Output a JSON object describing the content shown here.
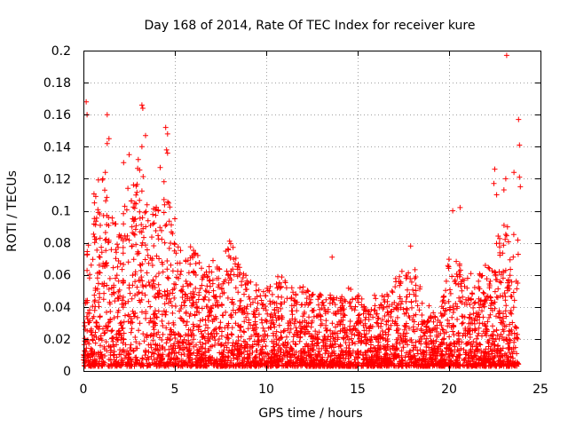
{
  "chart_data": {
    "type": "scatter",
    "title": "Day 168 of 2014, Rate Of TEC Index for receiver kure",
    "xlabel": "GPS time / hours",
    "ylabel": "ROTI / TECUs",
    "xlim": [
      0,
      25
    ],
    "ylim": [
      0,
      0.2
    ],
    "x_ticks": [
      0,
      5,
      10,
      15,
      20,
      25
    ],
    "x_tick_labels": [
      "0",
      "5",
      "10",
      "15",
      "20",
      "25"
    ],
    "y_ticks": [
      0,
      0.02,
      0.04,
      0.06,
      0.08,
      0.1,
      0.12,
      0.14,
      0.16,
      0.18,
      0.2
    ],
    "y_tick_labels": [
      "0",
      "0.02",
      "0.04",
      "0.06",
      "0.08",
      "0.1",
      "0.12",
      "0.14",
      "0.16",
      "0.18",
      "0.2"
    ],
    "grid": true,
    "marker": "plus",
    "color": "#ff0000",
    "envelope": {
      "x": [
        0,
        0.2,
        0.5,
        1,
        1.5,
        2,
        2.5,
        3,
        3.5,
        4,
        4.5,
        5,
        5.5,
        6,
        6.5,
        7,
        7.5,
        8,
        8.5,
        9,
        9.5,
        10,
        10.5,
        11,
        11.5,
        12,
        12.5,
        13,
        13.5,
        14,
        14.5,
        15,
        15.5,
        16,
        16.5,
        17,
        17.5,
        18,
        18.5,
        19,
        19.5,
        20,
        20.5,
        21,
        21.5,
        22,
        22.5,
        23,
        23.5,
        23.8
      ],
      "y": [
        0.02,
        0.08,
        0.11,
        0.12,
        0.1,
        0.09,
        0.12,
        0.13,
        0.11,
        0.1,
        0.12,
        0.08,
        0.07,
        0.08,
        0.06,
        0.065,
        0.07,
        0.08,
        0.065,
        0.06,
        0.05,
        0.05,
        0.055,
        0.06,
        0.05,
        0.05,
        0.045,
        0.045,
        0.045,
        0.045,
        0.05,
        0.045,
        0.04,
        0.045,
        0.045,
        0.055,
        0.06,
        0.065,
        0.05,
        0.035,
        0.03,
        0.07,
        0.065,
        0.06,
        0.055,
        0.065,
        0.08,
        0.09,
        0.09,
        0.08
      ]
    },
    "outliers": [
      {
        "x": 0.15,
        "y": 0.168
      },
      {
        "x": 0.2,
        "y": 0.16
      },
      {
        "x": 1.3,
        "y": 0.16
      },
      {
        "x": 1.4,
        "y": 0.145
      },
      {
        "x": 1.3,
        "y": 0.142
      },
      {
        "x": 3.2,
        "y": 0.166
      },
      {
        "x": 3.25,
        "y": 0.164
      },
      {
        "x": 3.4,
        "y": 0.147
      },
      {
        "x": 3.2,
        "y": 0.14
      },
      {
        "x": 4.5,
        "y": 0.152
      },
      {
        "x": 4.6,
        "y": 0.148
      },
      {
        "x": 4.55,
        "y": 0.138
      },
      {
        "x": 4.6,
        "y": 0.136
      },
      {
        "x": 2.5,
        "y": 0.135
      },
      {
        "x": 2.2,
        "y": 0.13
      },
      {
        "x": 3.0,
        "y": 0.132
      },
      {
        "x": 1.2,
        "y": 0.124
      },
      {
        "x": 4.2,
        "y": 0.127
      },
      {
        "x": 22.5,
        "y": 0.126
      },
      {
        "x": 22.45,
        "y": 0.117
      },
      {
        "x": 23.0,
        "y": 0.113
      },
      {
        "x": 23.1,
        "y": 0.12
      },
      {
        "x": 23.55,
        "y": 0.124
      },
      {
        "x": 23.8,
        "y": 0.157
      },
      {
        "x": 23.85,
        "y": 0.141
      },
      {
        "x": 23.85,
        "y": 0.121
      },
      {
        "x": 23.9,
        "y": 0.115
      },
      {
        "x": 23.15,
        "y": 0.197
      },
      {
        "x": 22.6,
        "y": 0.11
      },
      {
        "x": 20.2,
        "y": 0.1
      },
      {
        "x": 20.6,
        "y": 0.102
      },
      {
        "x": 13.6,
        "y": 0.071
      },
      {
        "x": 17.9,
        "y": 0.078
      },
      {
        "x": 5.0,
        "y": 0.095
      }
    ]
  }
}
